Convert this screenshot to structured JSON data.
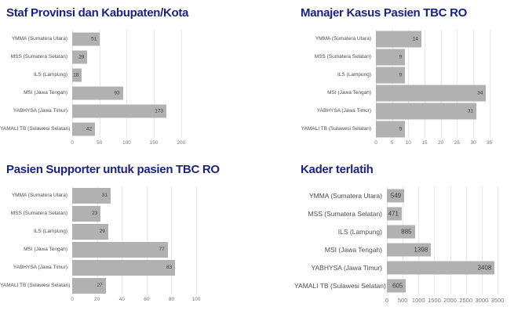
{
  "colors": {
    "background": "#ffffff",
    "title": "#1a237e",
    "bar": "#b1b1b1",
    "category_label": "#4d4d4d",
    "value_label": "#3d3d3d",
    "tick_label": "#757575",
    "gridline": "#e8e8e8"
  },
  "chart_data": [
    {
      "type": "bar",
      "orientation": "horizontal",
      "title": "Staf Provinsi dan Kabupaten/Kota",
      "categories": [
        "YMMA (Sumatera Utara)",
        "MSS (Sumatera Selatan)",
        "ILS (Lampung)",
        "MSI (Jawa Tengah)",
        "YABHYSA (Jawa Timur)",
        "YAMALI TB (Sulawesi Selatan)"
      ],
      "values": [
        51,
        28,
        18,
        93,
        173,
        42
      ],
      "ticks": [
        0,
        50,
        100,
        150,
        200
      ],
      "xlim": [
        0,
        219
      ],
      "grid": true,
      "legend": "none",
      "value_labels": true
    },
    {
      "type": "bar",
      "orientation": "horizontal",
      "title": "Manajer Kasus Pasien TBC RO",
      "categories": [
        "YMMA (Sumatera Utara)",
        "MSS (Sumatera Selatan)",
        "ILS (Lampung)",
        "MSI (Jawa Tengah)",
        "YABHYSA (Jawa Timur)",
        "YAMALI TB (Sulawesi Selatan)"
      ],
      "values": [
        14,
        9,
        9,
        34,
        31,
        9
      ],
      "ticks": [
        0,
        5,
        10,
        15,
        20,
        25,
        30,
        35
      ],
      "xlim": [
        0,
        36.3
      ],
      "grid": true,
      "legend": "none",
      "value_labels": true
    },
    {
      "type": "bar",
      "orientation": "horizontal",
      "title": "Pasien Supporter untuk pasien TBC RO",
      "categories": [
        "YMMA (Sumatera Utara)",
        "MSS (Sumatera Selatan)",
        "ILS (Lampung)",
        "MSI (Jawa Tengah)",
        "YABHYSA (Jawa Timur)",
        "YAMALI TB (Sulawesi Selatan)"
      ],
      "values": [
        31,
        23,
        29,
        77,
        83,
        27
      ],
      "ticks": [
        0,
        20,
        40,
        60,
        80,
        100
      ],
      "xlim": [
        0,
        105
      ],
      "grid": true,
      "legend": "none",
      "value_labels": true
    },
    {
      "type": "bar",
      "orientation": "horizontal",
      "title": "Kader terlatih",
      "categories": [
        "YMMA (Sumatera Utara)",
        "MSS (Sumatera Selatan)",
        "ILS (Lampung)",
        "MSI (Jawa Tengah)",
        "YABHYSA (Jawa Timur)",
        "YAMALI TB (Sulawesi Selatan)"
      ],
      "values": [
        549,
        471,
        885,
        1398,
        3408,
        605
      ],
      "ticks": [
        0,
        500,
        1000,
        1500,
        2000,
        2500,
        3000,
        3500
      ],
      "xlim": [
        0,
        3600
      ],
      "grid": true,
      "legend": "none",
      "value_labels": true
    }
  ]
}
